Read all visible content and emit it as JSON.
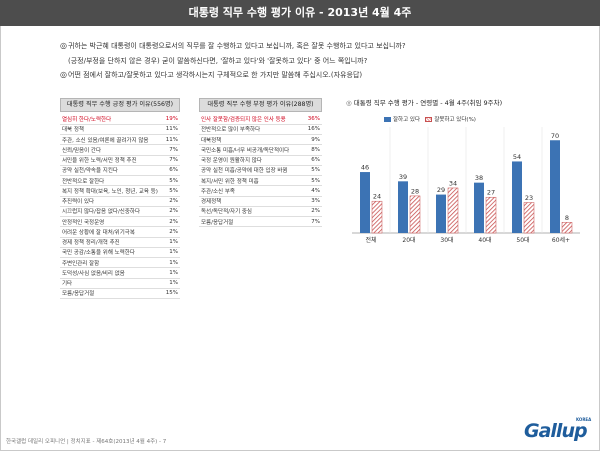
{
  "banner": "대통령 직무 수행 평가 이유 - 2013년 4월 4주",
  "question": {
    "q1": "귀하는 박근혜 대통령이 대통령으로서의 직무를 잘 수행하고 있다고 보십니까, 혹은 잘못 수행하고 있다고 보십니까?",
    "q1b": "(긍정/부정을 단하지 않은 경우) 굳이 말씀하신다면, '잘하고 있다'와 '잘못하고 있다' 중 어느 쪽입니까?",
    "q2": "어떤 점에서 잘하고/잘못하고 있다고 생각하시는지 구체적으로 한 가지만 말씀해 주십시오.(자유응답)"
  },
  "positive": {
    "header": "대통령 직무 수행 긍정 평가 이유(556명)",
    "rows": [
      {
        "label": "열심히 한다/노력한다",
        "value": "19%"
      },
      {
        "label": "대북 정책",
        "value": "11%"
      },
      {
        "label": "주관, 소신 있음/여론에 끌려가지 않음",
        "value": "11%"
      },
      {
        "label": "신뢰/믿음이 간다",
        "value": "7%"
      },
      {
        "label": "서민을 위한 노력/서민 정책 추진",
        "value": "7%"
      },
      {
        "label": "공약 실천/약속을 지킨다",
        "value": "6%"
      },
      {
        "label": "전반적으로 잘한다",
        "value": "5%"
      },
      {
        "label": "복지 정책 확대(보육, 노인, 청년, 교육 등)",
        "value": "5%"
      },
      {
        "label": "추진력이 있다",
        "value": "2%"
      },
      {
        "label": "시끄럽지 않다/잡음 없다/신중하다",
        "value": "2%"
      },
      {
        "label": "안정적인 국정운영",
        "value": "2%"
      },
      {
        "label": "어려운 상황에 잘 대처/위기극복",
        "value": "2%"
      },
      {
        "label": "경제 정책 정리/개혁 추진",
        "value": "1%"
      },
      {
        "label": "국민 공감/소통을 위해 노력한다",
        "value": "1%"
      },
      {
        "label": "주변인관리 잘함",
        "value": "1%"
      },
      {
        "label": "도덕성/사심 없음/비리 없음",
        "value": "1%"
      },
      {
        "label": "기타",
        "value": "1%"
      },
      {
        "label": "모름/응답거절",
        "value": "15%"
      }
    ]
  },
  "negative": {
    "header": "대통령 직무 수행 부정 평가 이유(288명)",
    "rows": [
      {
        "label": "인사 잘못함/검증되지 않은 인사 등용",
        "value": "36%"
      },
      {
        "label": "전반적으로 많이 부족하다",
        "value": "16%"
      },
      {
        "label": "대북정책",
        "value": "9%"
      },
      {
        "label": "국민소통 미흡/너무 비공개/독단적이다",
        "value": "8%"
      },
      {
        "label": "국정 운영이 원활하지 않다",
        "value": "6%"
      },
      {
        "label": "공약 실천 미흡/공약에 대한 입장 바뀜",
        "value": "5%"
      },
      {
        "label": "복지/서민 위한 정책 미흡",
        "value": "5%"
      },
      {
        "label": "주관/소신 부족",
        "value": "4%"
      },
      {
        "label": "경제정책",
        "value": "3%"
      },
      {
        "label": "독선/독단적/자기 중심",
        "value": "2%"
      },
      {
        "label": "모름/응답거절",
        "value": "7%"
      }
    ]
  },
  "chart_data": {
    "type": "bar",
    "title": "대통령 직무 수행 평가 - 연령별 - 4월 4주(취임 9주차)",
    "categories": [
      "전체",
      "20대",
      "30대",
      "40대",
      "50대",
      "60세+"
    ],
    "series": [
      {
        "name": "잘하고 있다",
        "values": [
          46,
          39,
          29,
          38,
          54,
          70
        ],
        "color": "#3c73b4"
      },
      {
        "name": "잘못하고 있다",
        "values": [
          24,
          28,
          34,
          27,
          23,
          8
        ],
        "color": "#c85050"
      }
    ],
    "ylim": [
      0,
      80
    ],
    "legend_placement": "top",
    "grid": true
  },
  "legend": {
    "pos_label": "잘하고 있다",
    "neg_label": "잘못하고 있다(%)"
  },
  "footer": "한국갤럽 데일리 오피니언 | 정치지표 - 제64호(2013년 4월 4주) - 7",
  "logo": "Gallup",
  "logo_sub": "KOREA"
}
